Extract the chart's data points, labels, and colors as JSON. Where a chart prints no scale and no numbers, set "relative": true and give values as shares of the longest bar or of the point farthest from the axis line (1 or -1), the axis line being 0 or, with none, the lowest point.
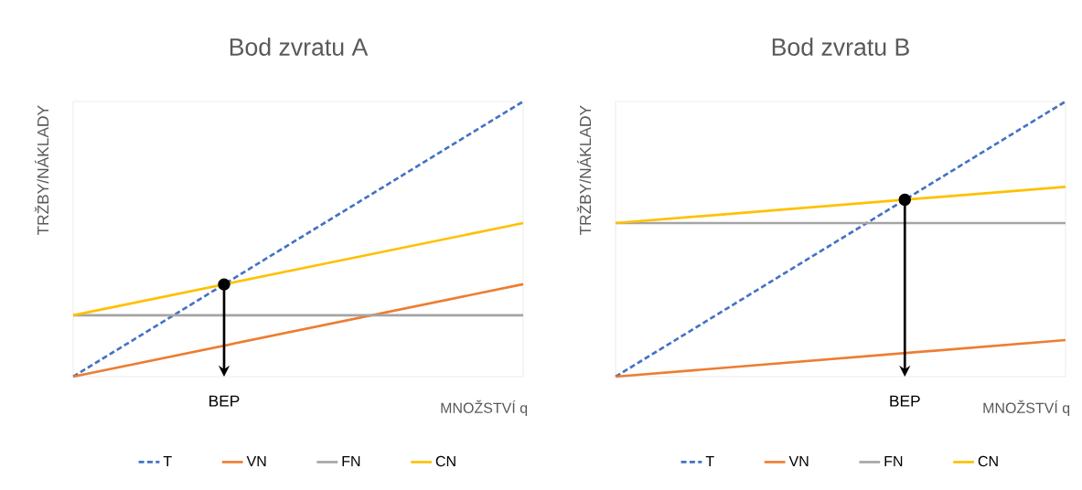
{
  "chart_data": [
    {
      "type": "line",
      "title": "Bod zvratu A",
      "xlabel": "MNOŽSTVÍ q",
      "ylabel": "TRŽBY/NÁKLADY",
      "relative": true,
      "categories": [
        null,
        null
      ],
      "legend": "bottom",
      "annotations": [
        "BEP"
      ],
      "series": [
        {
          "name": "T",
          "color": "#4472c4",
          "line_style": "dashed",
          "values": [
            0,
            1
          ]
        },
        {
          "name": "VN",
          "color": "#ed7d31",
          "values": [
            0,
            0.336
          ]
        },
        {
          "name": "FN",
          "color": "#a5a5a5",
          "values": [
            0.223,
            0.223
          ]
        },
        {
          "name": "CN",
          "color": "#ffc000",
          "values": [
            0.223,
            0.558
          ]
        }
      ]
    },
    {
      "type": "line",
      "title": "Bod zvratu B",
      "xlabel": "MNOŽSTVÍ q",
      "ylabel": "TRŽBY/NÁKLADY",
      "relative": true,
      "categories": [
        null,
        null
      ],
      "legend": "bottom",
      "annotations": [
        "BEP"
      ],
      "series": [
        {
          "name": "T",
          "color": "#4472c4",
          "line_style": "dashed",
          "values": [
            0,
            1
          ]
        },
        {
          "name": "VN",
          "color": "#ed7d31",
          "values": [
            0,
            0.133
          ]
        },
        {
          "name": "FN",
          "color": "#a5a5a5",
          "values": [
            0.558,
            0.558
          ]
        },
        {
          "name": "CN",
          "color": "#ffc000",
          "values": [
            0.558,
            0.69
          ]
        }
      ]
    }
  ]
}
